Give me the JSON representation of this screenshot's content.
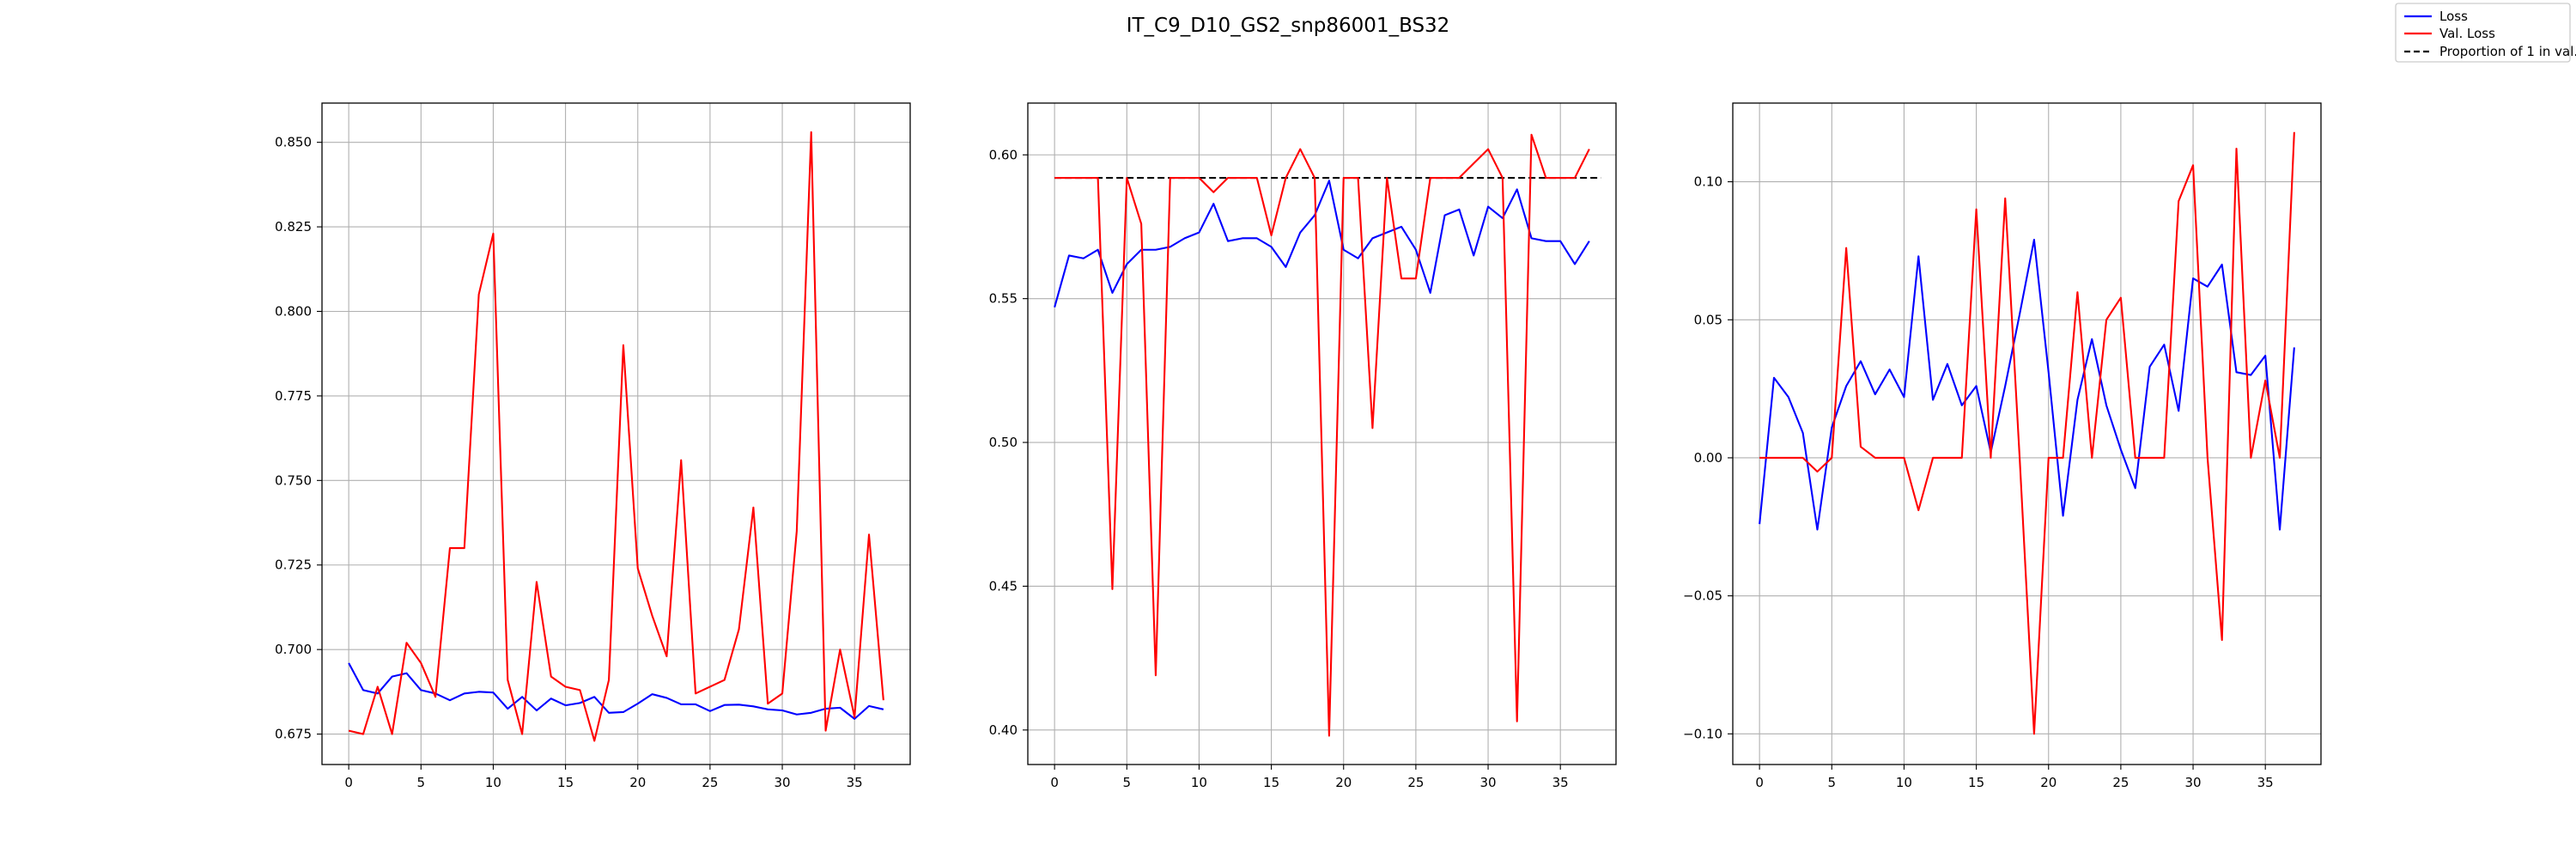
{
  "figure": {
    "title": "IT_C9_D10_GS2_snp86001_BS32"
  },
  "legend": {
    "placement": "upper-right",
    "entries": [
      {
        "label": "Loss",
        "color": "#0000ff",
        "style": "solid"
      },
      {
        "label": "Val. Loss",
        "color": "#ff0000",
        "style": "solid"
      },
      {
        "label": "Proportion of 1 in val.",
        "color": "#000000",
        "style": "dashed"
      }
    ]
  },
  "chart_data": [
    {
      "type": "line",
      "grid": true,
      "xlim": [
        -1.85,
        38.85
      ],
      "ylim": [
        0.666,
        0.8616
      ],
      "xticks": [
        0,
        5,
        10,
        15,
        20,
        25,
        30,
        35
      ],
      "xtick_labels": [
        "0",
        "5",
        "10",
        "15",
        "20",
        "25",
        "30",
        "35"
      ],
      "yticks": [
        0.675,
        0.7,
        0.725,
        0.75,
        0.775,
        0.8,
        0.825,
        0.85
      ],
      "ytick_labels": [
        "0.675",
        "0.700",
        "0.725",
        "0.750",
        "0.775",
        "0.800",
        "0.825",
        "0.850"
      ],
      "x": [
        0,
        1,
        2,
        3,
        4,
        5,
        6,
        7,
        8,
        9,
        10,
        11,
        12,
        13,
        14,
        15,
        16,
        17,
        18,
        19,
        20,
        21,
        22,
        23,
        24,
        25,
        26,
        27,
        28,
        29,
        30,
        31,
        32,
        33,
        34,
        35,
        36,
        37
      ],
      "series": [
        {
          "name": "Loss",
          "color": "#0000ff",
          "values": [
            0.696,
            0.688,
            0.687,
            0.692,
            0.693,
            0.688,
            0.687,
            0.685,
            0.687,
            0.6875,
            0.6873,
            0.6825,
            0.686,
            0.682,
            0.6855,
            0.6835,
            0.6842,
            0.686,
            0.6813,
            0.6815,
            0.684,
            0.6868,
            0.6857,
            0.6838,
            0.6838,
            0.6818,
            0.6836,
            0.6837,
            0.6832,
            0.6823,
            0.682,
            0.6808,
            0.6813,
            0.6825,
            0.6828,
            0.6795,
            0.6833,
            0.6823
          ]
        },
        {
          "name": "Val. Loss",
          "color": "#ff0000",
          "values": [
            0.676,
            0.675,
            0.689,
            0.675,
            0.702,
            0.696,
            0.686,
            0.73,
            0.73,
            0.805,
            0.823,
            0.691,
            0.675,
            0.72,
            0.692,
            0.689,
            0.688,
            0.673,
            0.691,
            0.79,
            0.724,
            0.71,
            0.698,
            0.756,
            0.687,
            0.689,
            0.691,
            0.706,
            0.742,
            0.684,
            0.687,
            0.735,
            0.853,
            0.676,
            0.7,
            0.68,
            0.734,
            0.685
          ]
        }
      ]
    },
    {
      "type": "line",
      "grid": true,
      "xlim": [
        -1.85,
        38.85
      ],
      "ylim": [
        0.388,
        0.618
      ],
      "xticks": [
        0,
        5,
        10,
        15,
        20,
        25,
        30,
        35
      ],
      "xtick_labels": [
        "0",
        "5",
        "10",
        "15",
        "20",
        "25",
        "30",
        "35"
      ],
      "yticks": [
        0.4,
        0.45,
        0.5,
        0.55,
        0.6
      ],
      "ytick_labels": [
        "0.40",
        "0.45",
        "0.50",
        "0.55",
        "0.60"
      ],
      "hline": {
        "name": "Proportion of 1 in val.",
        "value": 0.592,
        "color": "#000000",
        "style": "dashed"
      },
      "x": [
        0,
        1,
        2,
        3,
        4,
        5,
        6,
        7,
        8,
        9,
        10,
        11,
        12,
        13,
        14,
        15,
        16,
        17,
        18,
        19,
        20,
        21,
        22,
        23,
        24,
        25,
        26,
        27,
        28,
        29,
        30,
        31,
        32,
        33,
        34,
        35,
        36,
        37
      ],
      "series": [
        {
          "name": "Loss",
          "color": "#0000ff",
          "values": [
            0.547,
            0.565,
            0.564,
            0.567,
            0.552,
            0.562,
            0.567,
            0.567,
            0.568,
            0.571,
            0.573,
            0.583,
            0.57,
            0.571,
            0.571,
            0.568,
            0.561,
            0.573,
            0.579,
            0.591,
            0.567,
            0.564,
            0.571,
            0.573,
            0.575,
            0.567,
            0.552,
            0.579,
            0.581,
            0.565,
            0.582,
            0.578,
            0.588,
            0.571,
            0.57,
            0.57,
            0.562,
            0.57
          ]
        },
        {
          "name": "Val. Loss",
          "color": "#ff0000",
          "values": [
            0.592,
            0.592,
            0.592,
            0.592,
            0.449,
            0.592,
            0.576,
            0.419,
            0.592,
            0.592,
            0.592,
            0.587,
            0.592,
            0.592,
            0.592,
            0.572,
            0.592,
            0.602,
            0.592,
            0.398,
            0.592,
            0.592,
            0.505,
            0.592,
            0.557,
            0.557,
            0.592,
            0.592,
            0.592,
            0.597,
            0.602,
            0.592,
            0.403,
            0.607,
            0.592,
            0.592,
            0.592,
            0.602
          ]
        }
      ]
    },
    {
      "type": "line",
      "grid": true,
      "xlim": [
        -1.85,
        38.85
      ],
      "ylim": [
        -0.1111,
        0.1285
      ],
      "xticks": [
        0,
        5,
        10,
        15,
        20,
        25,
        30,
        35
      ],
      "xtick_labels": [
        "0",
        "5",
        "10",
        "15",
        "20",
        "25",
        "30",
        "35"
      ],
      "yticks": [
        -0.1,
        -0.05,
        0.0,
        0.05,
        0.1
      ],
      "ytick_labels": [
        "−0.10",
        "−0.05",
        "0.00",
        "0.05",
        "0.10"
      ],
      "x": [
        0,
        1,
        2,
        3,
        4,
        5,
        6,
        7,
        8,
        9,
        10,
        11,
        12,
        13,
        14,
        15,
        16,
        17,
        18,
        19,
        20,
        21,
        22,
        23,
        24,
        25,
        26,
        27,
        28,
        29,
        30,
        31,
        32,
        33,
        34,
        35,
        36,
        37
      ],
      "series": [
        {
          "name": "Loss",
          "color": "#0000ff",
          "values": [
            -0.024,
            0.029,
            0.022,
            0.009,
            -0.026,
            0.011,
            0.026,
            0.035,
            0.023,
            0.032,
            0.022,
            0.073,
            0.021,
            0.034,
            0.019,
            0.026,
            0.002,
            0.026,
            0.052,
            0.079,
            0.031,
            -0.021,
            0.021,
            0.043,
            0.019,
            0.003,
            -0.011,
            0.033,
            0.041,
            0.017,
            0.065,
            0.062,
            0.07,
            0.031,
            0.03,
            0.037,
            -0.026,
            0.04
          ]
        },
        {
          "name": "Val. Loss",
          "color": "#ff0000",
          "values": [
            0.0,
            0.0,
            0.0,
            0.0,
            -0.005,
            0.0,
            0.076,
            0.004,
            0.0,
            0.0,
            0.0,
            -0.019,
            0.0,
            0.0,
            0.0,
            0.09,
            0.0,
            0.094,
            0.0,
            -0.1,
            0.0,
            0.0,
            0.06,
            0.0,
            0.05,
            0.058,
            0.0,
            0.0,
            0.0,
            0.093,
            0.106,
            0.0,
            -0.066,
            0.112,
            0.0,
            0.028,
            0.0,
            0.118
          ]
        }
      ]
    }
  ]
}
